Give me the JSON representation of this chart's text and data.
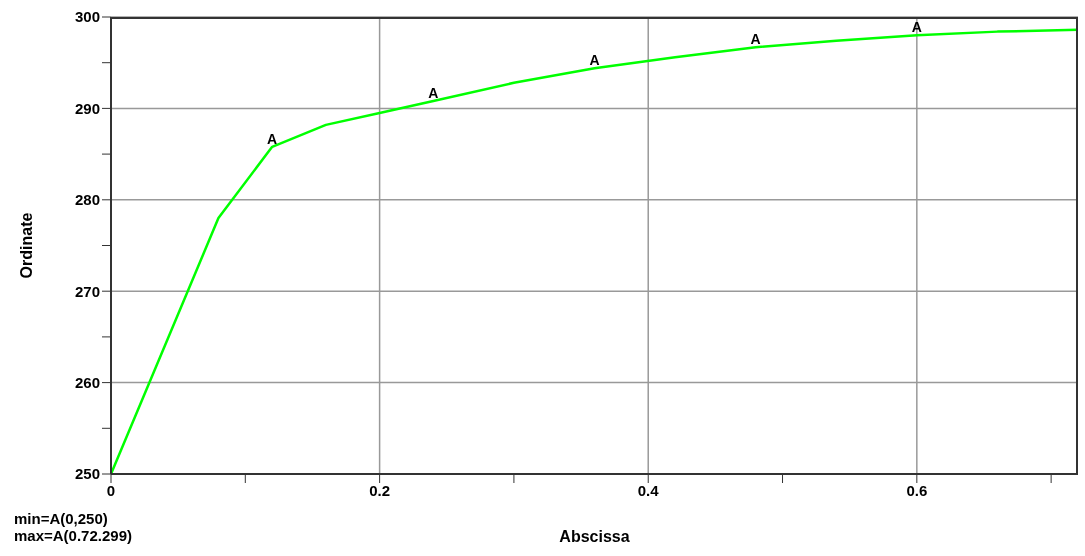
{
  "chart_data": {
    "type": "line",
    "xlabel": "Abscissa",
    "ylabel": "Ordinate",
    "xlim": [
      0,
      0.72
    ],
    "xticks": [
      0,
      {
        "value": 0.1,
        "label": null
      },
      0.2,
      {
        "value": 0.3,
        "label": null
      },
      0.4,
      {
        "value": 0.5,
        "label": null
      },
      0.6,
      {
        "value": 0.7,
        "label": null
      }
    ],
    "ylim": [
      250,
      300
    ],
    "yticks": [
      250,
      {
        "value": 255,
        "label": null
      },
      260,
      {
        "value": 265,
        "label": null
      },
      270,
      {
        "value": 275,
        "label": null
      },
      280,
      {
        "value": 285,
        "label": null
      },
      290,
      {
        "value": 295,
        "label": null
      },
      300
    ],
    "grid": true,
    "marker": "none",
    "line_style": "solid",
    "series": [
      {
        "name": "A",
        "color": "#00ff00",
        "x": [
          0,
          0.08,
          0.12,
          0.16,
          0.2,
          0.24,
          0.3,
          0.36,
          0.42,
          0.48,
          0.54,
          0.6,
          0.66,
          0.72
        ],
        "values": [
          250,
          278,
          285.8,
          288.2,
          289.5,
          290.8,
          292.8,
          294.4,
          295.6,
          296.7,
          297.4,
          298,
          298.4,
          298.6
        ]
      }
    ],
    "annotations": [
      "min=A(0,250)",
      "max=A(0.72.299)"
    ]
  }
}
